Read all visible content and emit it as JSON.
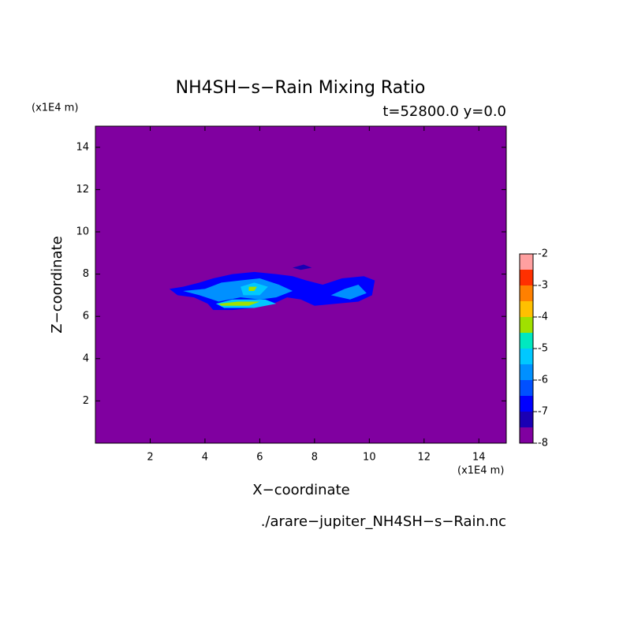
{
  "chart_data": {
    "type": "contour",
    "title": "NH4SH−s−Rain Mixing Ratio",
    "subtitle": "t=52800.0 y=0.0",
    "x_label": "X−coordinate",
    "y_label": "Z−coordinate",
    "x_unit": "(x1E4 m)",
    "y_unit": "(x1E4 m)",
    "file": "./arare−jupiter_NH4SH−s−Rain.nc",
    "xlim": [
      0,
      15
    ],
    "ylim": [
      0,
      15
    ],
    "xticks": [
      2,
      4,
      6,
      8,
      10,
      12,
      14
    ],
    "yticks": [
      2,
      4,
      6,
      8,
      10,
      12,
      14
    ],
    "levels": [
      -8,
      -7.5,
      -7,
      -6.5,
      -6,
      -5.5,
      -5,
      -4.5,
      -4,
      -3.5,
      -3,
      -2.5,
      -2
    ],
    "colors": [
      "#8000a0",
      "#1a00b4",
      "#0000ff",
      "#0050ff",
      "#0090ff",
      "#00c8ff",
      "#00e8c0",
      "#a0e000",
      "#ffc000",
      "#ff8000",
      "#ff3000",
      "#ffa0a0"
    ],
    "cticks": [
      -8,
      -7,
      -6,
      -5,
      -4,
      -3,
      -2
    ],
    "contours": [
      {
        "value": -8,
        "points": [
          [
            0,
            0
          ],
          [
            15,
            0
          ],
          [
            15,
            15
          ],
          [
            0,
            15
          ]
        ]
      },
      {
        "value": -7,
        "points": [
          [
            2.7,
            7.3
          ],
          [
            3.2,
            7.4
          ],
          [
            3.8,
            7.6
          ],
          [
            4.3,
            7.8
          ],
          [
            5,
            8.0
          ],
          [
            5.8,
            8.1
          ],
          [
            6.6,
            8.0
          ],
          [
            7.2,
            7.9
          ],
          [
            7.7,
            7.7
          ],
          [
            8.3,
            7.5
          ],
          [
            9,
            7.8
          ],
          [
            9.8,
            7.9
          ],
          [
            10.2,
            7.7
          ],
          [
            10.1,
            7.0
          ],
          [
            9.6,
            6.7
          ],
          [
            8.8,
            6.6
          ],
          [
            8,
            6.5
          ],
          [
            7.5,
            6.8
          ],
          [
            7,
            6.9
          ],
          [
            6.5,
            6.6
          ],
          [
            5.8,
            6.4
          ],
          [
            5,
            6.3
          ],
          [
            4.3,
            6.3
          ],
          [
            4.1,
            6.6
          ],
          [
            3.6,
            6.9
          ],
          [
            3,
            7.0
          ]
        ]
      },
      {
        "value": -7.5,
        "points": [
          [
            7.2,
            8.3
          ],
          [
            7.6,
            8.45
          ],
          [
            7.9,
            8.3
          ],
          [
            7.5,
            8.2
          ]
        ]
      },
      {
        "value": -6,
        "points": [
          [
            3.2,
            7.2
          ],
          [
            4,
            7.3
          ],
          [
            4.6,
            7.6
          ],
          [
            5.3,
            7.7
          ],
          [
            6,
            7.8
          ],
          [
            6.7,
            7.5
          ],
          [
            7.2,
            7.2
          ],
          [
            6.6,
            6.9
          ],
          [
            6,
            6.8
          ],
          [
            5.3,
            6.9
          ],
          [
            4.5,
            6.7
          ],
          [
            3.8,
            7.0
          ]
        ]
      },
      {
        "value": -6,
        "points": [
          [
            8.6,
            7.0
          ],
          [
            9.1,
            7.3
          ],
          [
            9.6,
            7.5
          ],
          [
            9.9,
            7.1
          ],
          [
            9.3,
            6.8
          ]
        ]
      },
      {
        "value": -5.5,
        "points": [
          [
            5.3,
            7.4
          ],
          [
            5.8,
            7.6
          ],
          [
            6.3,
            7.4
          ],
          [
            6,
            7.0
          ],
          [
            5.4,
            7.0
          ]
        ]
      },
      {
        "value": -4.5,
        "points": [
          [
            5.6,
            7.4
          ],
          [
            5.9,
            7.4
          ],
          [
            5.8,
            7.2
          ],
          [
            5.6,
            7.2
          ]
        ]
      },
      {
        "value": -5.5,
        "points": [
          [
            4.4,
            6.6
          ],
          [
            5,
            6.8
          ],
          [
            6.2,
            6.8
          ],
          [
            6.6,
            6.6
          ],
          [
            5.8,
            6.4
          ],
          [
            4.7,
            6.4
          ]
        ]
      },
      {
        "value": -4.5,
        "points": [
          [
            4.5,
            6.6
          ],
          [
            5.2,
            6.7
          ],
          [
            6,
            6.7
          ],
          [
            5.6,
            6.5
          ],
          [
            4.6,
            6.5
          ]
        ]
      }
    ]
  }
}
